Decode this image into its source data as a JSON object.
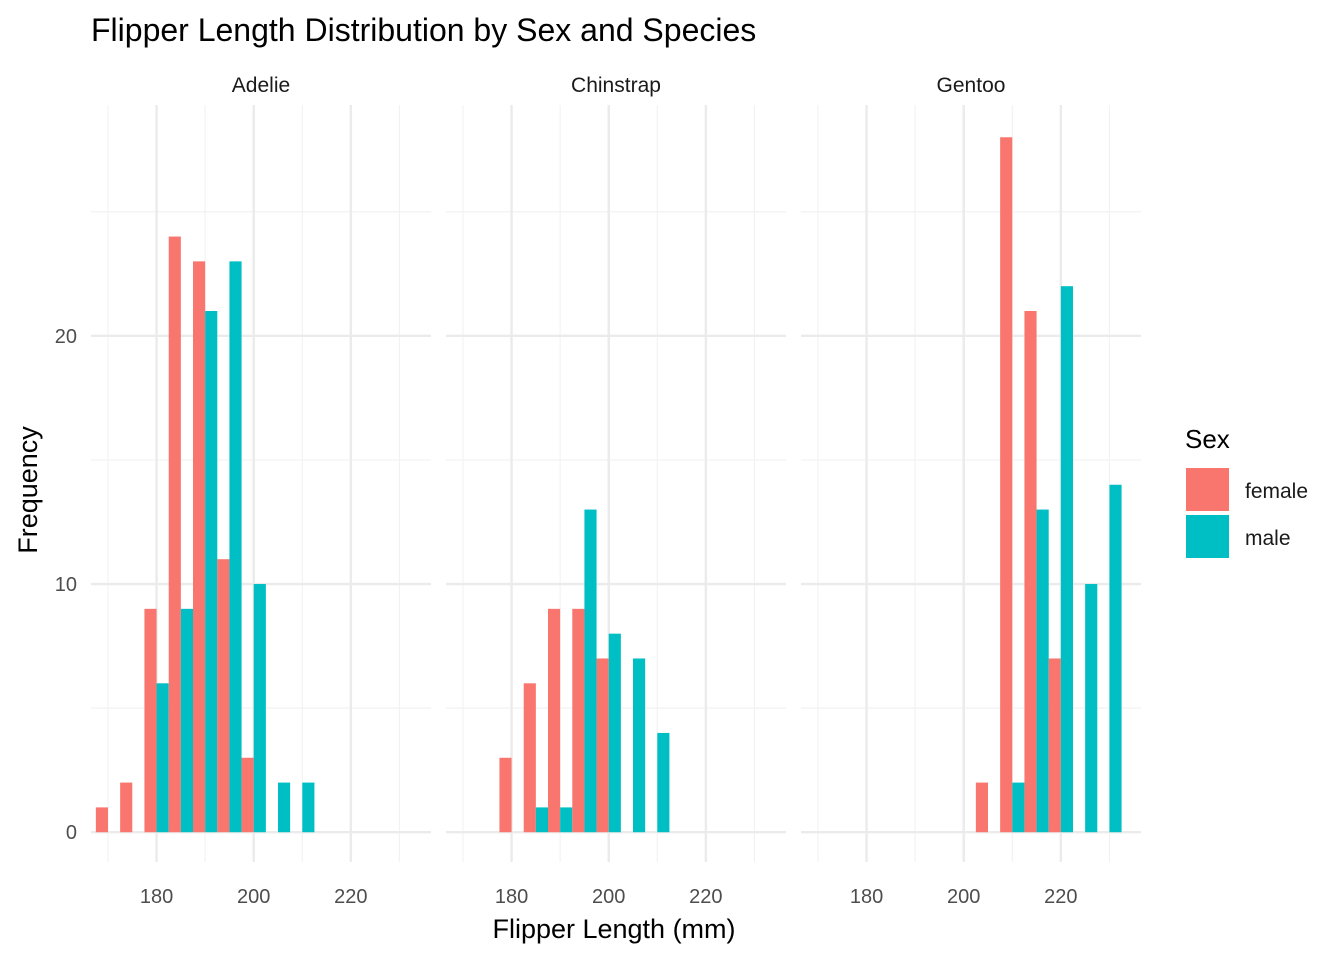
{
  "chart_data": {
    "type": "bar",
    "title": "Flipper Length Distribution by Sex and Species",
    "xlabel": "Flipper Length (mm)",
    "ylabel": "Frequency",
    "xlim": [
      166.5,
      236.5
    ],
    "ylim": [
      -1.2,
      29.3
    ],
    "x_ticks": [
      180,
      200,
      220
    ],
    "y_ticks": [
      0,
      10,
      20
    ],
    "bin_width": 5,
    "grid": true,
    "legend": {
      "title": "Sex",
      "position": "right"
    },
    "series_colors": {
      "female": "#F8766D",
      "male": "#00BFC4"
    },
    "panels": [
      {
        "label": "Adelie",
        "bins": [
          170,
          175,
          180,
          185,
          190,
          195,
          200,
          205,
          210
        ],
        "series": [
          {
            "name": "female",
            "values": [
              1,
              2,
              9,
              24,
              23,
              11,
              3,
              0,
              0
            ]
          },
          {
            "name": "male",
            "values": [
              0,
              0,
              6,
              9,
              21,
              23,
              10,
              2,
              2
            ]
          }
        ]
      },
      {
        "label": "Chinstrap",
        "bins": [
          180,
          185,
          190,
          195,
          200,
          205,
          210
        ],
        "series": [
          {
            "name": "female",
            "values": [
              3,
              6,
              9,
              9,
              7,
              0,
              0
            ]
          },
          {
            "name": "male",
            "values": [
              0,
              1,
              1,
              13,
              8,
              7,
              4
            ]
          }
        ]
      },
      {
        "label": "Gentoo",
        "bins": [
          205,
          210,
          215,
          220,
          225,
          230
        ],
        "series": [
          {
            "name": "female",
            "values": [
              2,
              28,
              21,
              7,
              0,
              0
            ]
          },
          {
            "name": "male",
            "values": [
              0,
              2,
              13,
              22,
              10,
              14
            ]
          }
        ]
      }
    ]
  }
}
